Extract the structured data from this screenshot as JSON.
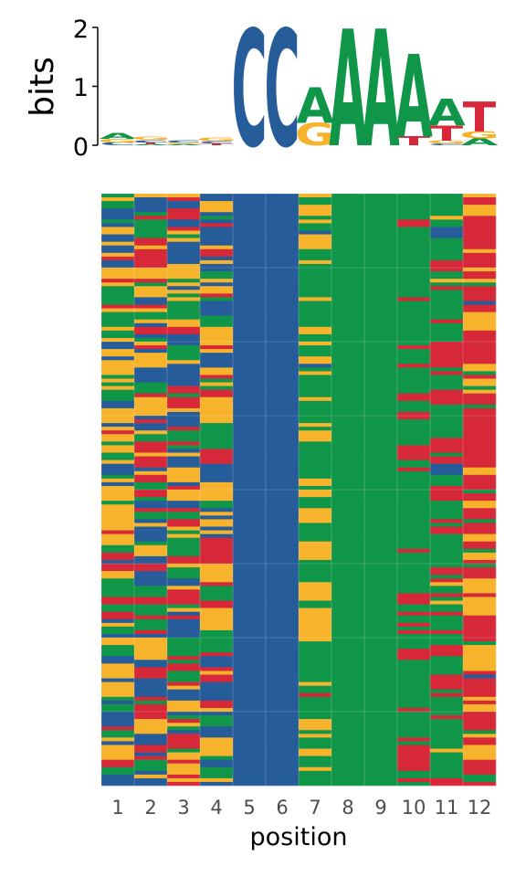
{
  "chart_data": [
    {
      "type": "sequence-logo",
      "ylabel": "bits",
      "ylim": [
        0,
        2
      ],
      "yticks": [
        "0",
        "1",
        "2"
      ],
      "alphabet_colors": {
        "A": "#109648",
        "C": "#255C99",
        "G": "#F7B32B",
        "T": "#D62839"
      },
      "positions": [
        {
          "pos": 1,
          "letters": [
            {
              "l": "C",
              "bits": 0.05
            },
            {
              "l": "G",
              "bits": 0.06
            },
            {
              "l": "A",
              "bits": 0.1
            }
          ]
        },
        {
          "pos": 2,
          "letters": [
            {
              "l": "A",
              "bits": 0.02
            },
            {
              "l": "T",
              "bits": 0.03
            },
            {
              "l": "C",
              "bits": 0.04
            },
            {
              "l": "G",
              "bits": 0.05
            }
          ]
        },
        {
          "pos": 3,
          "letters": [
            {
              "l": "A",
              "bits": 0.02
            },
            {
              "l": "G",
              "bits": 0.03
            },
            {
              "l": "C",
              "bits": 0.04
            }
          ]
        },
        {
          "pos": 4,
          "letters": [
            {
              "l": "T",
              "bits": 0.03
            },
            {
              "l": "C",
              "bits": 0.04
            },
            {
              "l": "G",
              "bits": 0.06
            }
          ]
        },
        {
          "pos": 5,
          "letters": [
            {
              "l": "C",
              "bits": 1.98
            }
          ]
        },
        {
          "pos": 6,
          "letters": [
            {
              "l": "C",
              "bits": 1.98
            }
          ]
        },
        {
          "pos": 7,
          "letters": [
            {
              "l": "G",
              "bits": 0.38
            },
            {
              "l": "A",
              "bits": 0.6
            }
          ]
        },
        {
          "pos": 8,
          "letters": [
            {
              "l": "A",
              "bits": 1.98
            }
          ]
        },
        {
          "pos": 9,
          "letters": [
            {
              "l": "A",
              "bits": 1.98
            }
          ]
        },
        {
          "pos": 10,
          "letters": [
            {
              "l": "T",
              "bits": 0.15
            },
            {
              "l": "A",
              "bits": 1.4
            }
          ]
        },
        {
          "pos": 11,
          "letters": [
            {
              "l": "C",
              "bits": 0.03
            },
            {
              "l": "G",
              "bits": 0.05
            },
            {
              "l": "T",
              "bits": 0.25
            },
            {
              "l": "A",
              "bits": 0.45
            }
          ]
        },
        {
          "pos": 12,
          "letters": [
            {
              "l": "A",
              "bits": 0.12
            },
            {
              "l": "G",
              "bits": 0.12
            },
            {
              "l": "T",
              "bits": 0.5
            }
          ]
        }
      ]
    },
    {
      "type": "heatmap",
      "xlabel": "position",
      "x": [
        "1",
        "2",
        "3",
        "4",
        "5",
        "6",
        "7",
        "8",
        "9",
        "10",
        "11",
        "12"
      ],
      "colors": {
        "A": "#109648",
        "C": "#255C99",
        "G": "#F7B32B",
        "T": "#D62839"
      },
      "n_sequences": 160,
      "column_base_frequencies": [
        {
          "A": 0.3,
          "C": 0.27,
          "G": 0.33,
          "T": 0.1
        },
        {
          "A": 0.2,
          "C": 0.3,
          "G": 0.27,
          "T": 0.23
        },
        {
          "A": 0.22,
          "C": 0.25,
          "G": 0.3,
          "T": 0.23
        },
        {
          "A": 0.22,
          "C": 0.24,
          "G": 0.36,
          "T": 0.18
        },
        {
          "A": 0.0,
          "C": 1.0,
          "G": 0.0,
          "T": 0.0
        },
        {
          "A": 0.0,
          "C": 1.0,
          "G": 0.0,
          "T": 0.0
        },
        {
          "A": 0.66,
          "C": 0.02,
          "G": 0.3,
          "T": 0.02
        },
        {
          "A": 1.0,
          "C": 0.0,
          "G": 0.0,
          "T": 0.0
        },
        {
          "A": 1.0,
          "C": 0.0,
          "G": 0.0,
          "T": 0.0
        },
        {
          "A": 0.88,
          "C": 0.0,
          "G": 0.0,
          "T": 0.12
        },
        {
          "A": 0.66,
          "C": 0.05,
          "G": 0.04,
          "T": 0.25
        },
        {
          "A": 0.16,
          "C": 0.02,
          "G": 0.26,
          "T": 0.56
        }
      ]
    }
  ]
}
